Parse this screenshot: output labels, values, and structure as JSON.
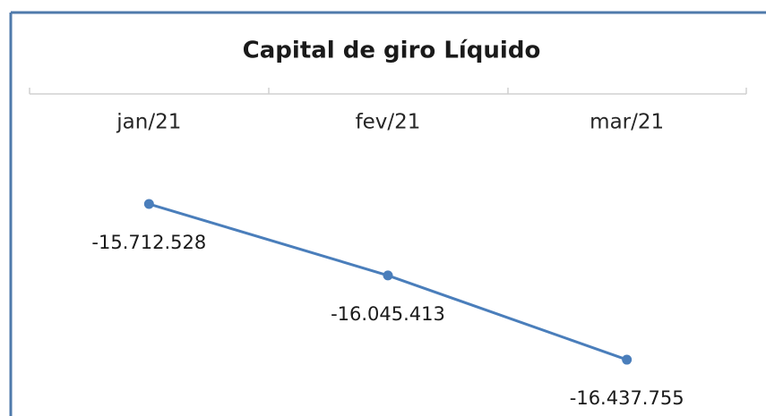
{
  "chart_data": {
    "type": "line",
    "title": "Capital de giro Líquido",
    "categories": [
      "jan/21",
      "fev/21",
      "mar/21"
    ],
    "values": [
      -15712528,
      -16045413,
      -16437755
    ],
    "value_labels": [
      "-15.712.528",
      "-16.045.413",
      "-16.437.755"
    ],
    "color": "#4a7ebb",
    "ylim": [
      -16700000,
      -15200000
    ]
  }
}
